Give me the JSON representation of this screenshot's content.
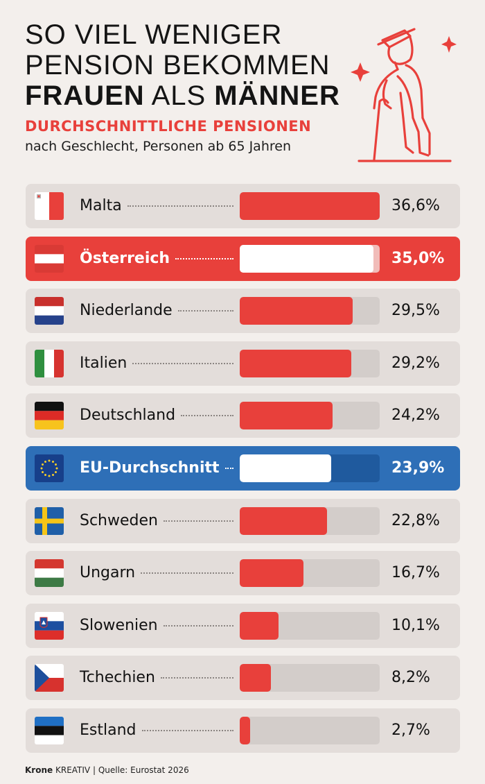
{
  "header": {
    "line1": "SO VIEL WENIGER",
    "line2": "PENSION BEKOMMEN",
    "line3_bold_a": "FRAUEN",
    "line3_mid": " ALS ",
    "line3_bold_b": "MÄNNER",
    "subtitle": "DURCHSCHNITTLICHE PENSIONEN",
    "subtitle2": "nach Geschlecht, Personen ab 65 Jahren"
  },
  "colors": {
    "accent_red": "#e8403b",
    "eu_blue": "#2e6fb7",
    "row_bg": "#e3ddda",
    "track_bg": "#d3cdca",
    "page_bg": "#f3efec"
  },
  "chart_data": {
    "type": "bar",
    "orientation": "horizontal",
    "title": "SO VIEL WENIGER PENSION BEKOMMEN FRAUEN ALS MÄNNER",
    "subtitle": "DURCHSCHNITTLICHE PENSIONEN – nach Geschlecht, Personen ab 65 Jahren",
    "unit": "%",
    "xlim": [
      0,
      36.6
    ],
    "categories": [
      "Malta",
      "Österreich",
      "Niederlande",
      "Italien",
      "Deutschland",
      "EU-Durchschnitt",
      "Schweden",
      "Ungarn",
      "Slowenien",
      "Tchechien",
      "Estland"
    ],
    "values": [
      36.6,
      35.0,
      29.5,
      29.2,
      24.2,
      23.9,
      22.8,
      16.7,
      10.1,
      8.2,
      2.7
    ],
    "value_labels": [
      "36,6%",
      "35,0%",
      "29,5%",
      "29,2%",
      "24,2%",
      "23,9%",
      "22,8%",
      "16,7%",
      "10,1%",
      "8,2%",
      "2,7%"
    ],
    "highlight": [
      "",
      "red",
      "",
      "",
      "",
      "blue",
      "",
      "",
      "",
      "",
      ""
    ],
    "flags": [
      "malta-flag",
      "austria-flag",
      "netherlands-flag",
      "italy-flag",
      "germany-flag",
      "eu-flag",
      "sweden-flag",
      "hungary-flag",
      "slovenia-flag",
      "czechia-flag",
      "estonia-flag"
    ]
  },
  "footer": {
    "brand": "Krone",
    "brand_suffix": "KREATIV",
    "source": " | Quelle: Eurostat 2026"
  }
}
